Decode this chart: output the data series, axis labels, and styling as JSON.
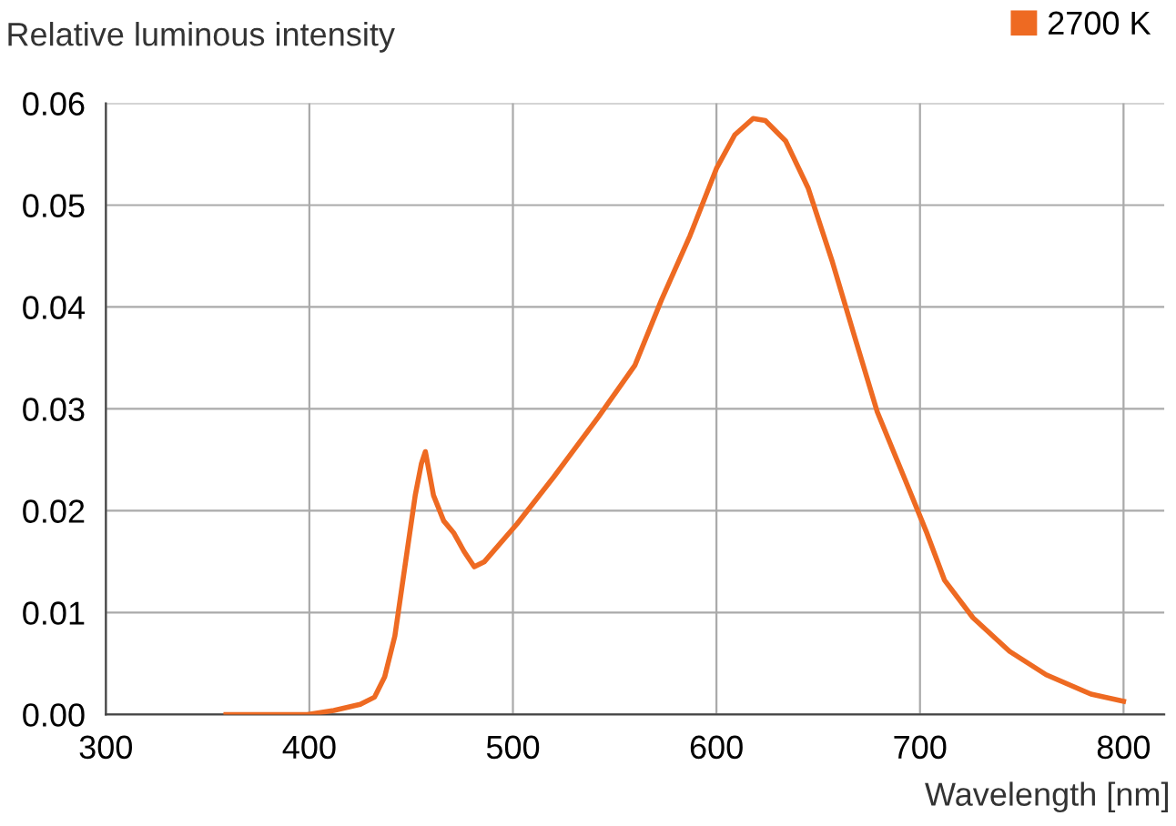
{
  "chart_data": {
    "type": "line",
    "title": "Relative luminous intensity",
    "xlabel": "Wavelength [nm]",
    "xlim": [
      300,
      820
    ],
    "xticks": [
      300,
      400,
      500,
      600,
      700,
      800
    ],
    "ylim": [
      0,
      0.06
    ],
    "yticks": [
      {
        "value": 0,
        "label": "0.00"
      },
      {
        "value": 0.01,
        "label": "0.01"
      },
      {
        "value": 0.02,
        "label": "0.02"
      },
      {
        "value": 0.03,
        "label": "0.03"
      },
      {
        "value": 0.04,
        "label": "0.04"
      },
      {
        "value": 0.05,
        "label": "0.05"
      },
      {
        "value": 0.06,
        "label": "0.06"
      }
    ],
    "grid": true,
    "legend": "top right",
    "marker": "none",
    "line_style": "solid",
    "series": [
      {
        "name": "2700 K",
        "color": "#ee6a22",
        "x": [
          359,
          399,
          412,
          425,
          432,
          437,
          442,
          448,
          452,
          455,
          457,
          461,
          466,
          471,
          476,
          481,
          486,
          502,
          520,
          542,
          560,
          573,
          587,
          600,
          609,
          618,
          624,
          634,
          645,
          657,
          668,
          679,
          694,
          703,
          712,
          726,
          744,
          762,
          784,
          800
        ],
        "values": [
          0.0,
          0.0,
          0.0004,
          0.001,
          0.0017,
          0.0037,
          0.0077,
          0.016,
          0.0215,
          0.0246,
          0.0258,
          0.0215,
          0.019,
          0.0178,
          0.016,
          0.0145,
          0.015,
          0.0187,
          0.0233,
          0.0292,
          0.0343,
          0.0407,
          0.047,
          0.0536,
          0.0569,
          0.0585,
          0.0583,
          0.0563,
          0.0517,
          0.0444,
          0.037,
          0.0297,
          0.0224,
          0.018,
          0.0132,
          0.0095,
          0.0062,
          0.0039,
          0.002,
          0.0013
        ]
      }
    ]
  }
}
